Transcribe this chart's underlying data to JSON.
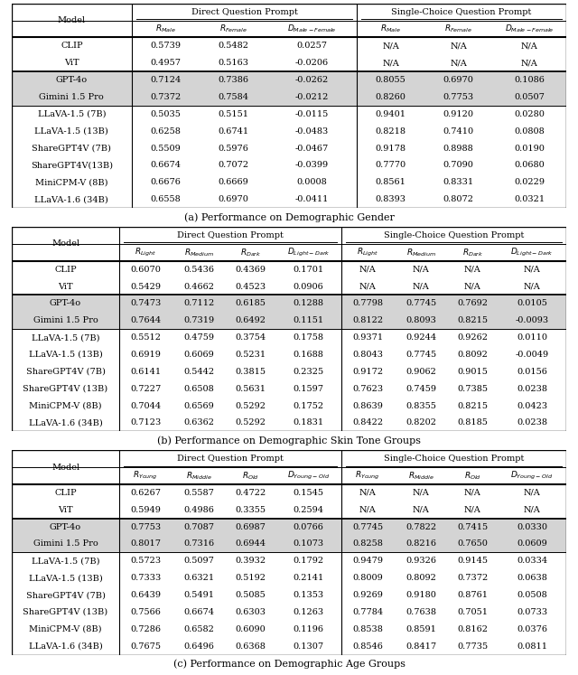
{
  "fig_width": 6.4,
  "fig_height": 7.47,
  "dpi": 100,
  "background_color": "#ffffff",
  "gray_bg": "#d4d4d4",
  "table_a": {
    "caption": "(a) Performance on Demographic Gender",
    "col_labels_row2": [
      "",
      "$R_{Male}$",
      "$R_{Female}$",
      "$D_{Male-Female}$",
      "$R_{Male}$",
      "$R_{Female}$",
      "$D_{Male-Female}$"
    ],
    "dq_span": [
      1,
      3
    ],
    "sc_span": [
      4,
      6
    ],
    "groups": [
      {
        "gray": false,
        "rows": [
          [
            "CLIP",
            "0.5739",
            "0.5482",
            "0.0257",
            "N/A",
            "N/A",
            "N/A"
          ],
          [
            "ViT",
            "0.4957",
            "0.5163",
            "-0.0206",
            "N/A",
            "N/A",
            "N/A"
          ]
        ]
      },
      {
        "gray": true,
        "rows": [
          [
            "GPT-4o",
            "0.7124",
            "0.7386",
            "-0.0262",
            "0.8055",
            "0.6970",
            "0.1086"
          ],
          [
            "Gimini 1.5 Pro",
            "0.7372",
            "0.7584",
            "-0.0212",
            "0.8260",
            "0.7753",
            "0.0507"
          ]
        ]
      },
      {
        "gray": false,
        "rows": [
          [
            "LLaVA-1.5 (7B)",
            "0.5035",
            "0.5151",
            "-0.0115",
            "0.9401",
            "0.9120",
            "0.0280"
          ],
          [
            "LLaVA-1.5 (13B)",
            "0.6258",
            "0.6741",
            "-0.0483",
            "0.8218",
            "0.7410",
            "0.0808"
          ],
          [
            "ShareGPT4V (7B)",
            "0.5509",
            "0.5976",
            "-0.0467",
            "0.9178",
            "0.8988",
            "0.0190"
          ],
          [
            "ShareGPT4V(13B)",
            "0.6674",
            "0.7072",
            "-0.0399",
            "0.7770",
            "0.7090",
            "0.0680"
          ],
          [
            "MiniCPM-V (8B)",
            "0.6676",
            "0.6669",
            "0.0008",
            "0.8561",
            "0.8331",
            "0.0229"
          ],
          [
            "LLaVA-1.6 (34B)",
            "0.6558",
            "0.6970",
            "-0.0411",
            "0.8393",
            "0.8072",
            "0.0321"
          ]
        ]
      }
    ]
  },
  "table_b": {
    "caption": "(b) Performance on Demographic Skin Tone Groups",
    "col_labels_row2": [
      "",
      "$R_{Light}$",
      "$R_{Medium}$",
      "$R_{Dark}$",
      "$D_{Light-Dark}$",
      "$R_{Light}$",
      "$R_{Medium}$",
      "$R_{Dark}$",
      "$D_{Light-Dark}$"
    ],
    "dq_span": [
      1,
      4
    ],
    "sc_span": [
      5,
      8
    ],
    "groups": [
      {
        "gray": false,
        "rows": [
          [
            "CLIP",
            "0.6070",
            "0.5436",
            "0.4369",
            "0.1701",
            "N/A",
            "N/A",
            "N/A",
            "N/A"
          ],
          [
            "ViT",
            "0.5429",
            "0.4662",
            "0.4523",
            "0.0906",
            "N/A",
            "N/A",
            "N/A",
            "N/A"
          ]
        ]
      },
      {
        "gray": true,
        "rows": [
          [
            "GPT-4o",
            "0.7473",
            "0.7112",
            "0.6185",
            "0.1288",
            "0.7798",
            "0.7745",
            "0.7692",
            "0.0105"
          ],
          [
            "Gimini 1.5 Pro",
            "0.7644",
            "0.7319",
            "0.6492",
            "0.1151",
            "0.8122",
            "0.8093",
            "0.8215",
            "-0.0093"
          ]
        ]
      },
      {
        "gray": false,
        "rows": [
          [
            "LLaVA-1.5 (7B)",
            "0.5512",
            "0.4759",
            "0.3754",
            "0.1758",
            "0.9371",
            "0.9244",
            "0.9262",
            "0.0110"
          ],
          [
            "LLaVA-1.5 (13B)",
            "0.6919",
            "0.6069",
            "0.5231",
            "0.1688",
            "0.8043",
            "0.7745",
            "0.8092",
            "-0.0049"
          ],
          [
            "ShareGPT4V (7B)",
            "0.6141",
            "0.5442",
            "0.3815",
            "0.2325",
            "0.9172",
            "0.9062",
            "0.9015",
            "0.0156"
          ],
          [
            "ShareGPT4V (13B)",
            "0.7227",
            "0.6508",
            "0.5631",
            "0.1597",
            "0.7623",
            "0.7459",
            "0.7385",
            "0.0238"
          ],
          [
            "MiniCPM-V (8B)",
            "0.7044",
            "0.6569",
            "0.5292",
            "0.1752",
            "0.8639",
            "0.8355",
            "0.8215",
            "0.0423"
          ],
          [
            "LLaVA-1.6 (34B)",
            "0.7123",
            "0.6362",
            "0.5292",
            "0.1831",
            "0.8422",
            "0.8202",
            "0.8185",
            "0.0238"
          ]
        ]
      }
    ]
  },
  "table_c": {
    "caption": "(c) Performance on Demographic Age Groups",
    "col_labels_row2": [
      "",
      "$R_{Young}$",
      "$R_{Middle}$",
      "$R_{Old}$",
      "$D_{Young-Old}$",
      "$R_{Young}$",
      "$R_{Middle}$",
      "$R_{Old}$",
      "$D_{Young-Old}$"
    ],
    "dq_span": [
      1,
      4
    ],
    "sc_span": [
      5,
      8
    ],
    "groups": [
      {
        "gray": false,
        "rows": [
          [
            "CLIP",
            "0.6267",
            "0.5587",
            "0.4722",
            "0.1545",
            "N/A",
            "N/A",
            "N/A",
            "N/A"
          ],
          [
            "ViT",
            "0.5949",
            "0.4986",
            "0.3355",
            "0.2594",
            "N/A",
            "N/A",
            "N/A",
            "N/A"
          ]
        ]
      },
      {
        "gray": true,
        "rows": [
          [
            "GPT-4o",
            "0.7753",
            "0.7087",
            "0.6987",
            "0.0766",
            "0.7745",
            "0.7822",
            "0.7415",
            "0.0330"
          ],
          [
            "Gimini 1.5 Pro",
            "0.8017",
            "0.7316",
            "0.6944",
            "0.1073",
            "0.8258",
            "0.8216",
            "0.7650",
            "0.0609"
          ]
        ]
      },
      {
        "gray": false,
        "rows": [
          [
            "LLaVA-1.5 (7B)",
            "0.5723",
            "0.5097",
            "0.3932",
            "0.1792",
            "0.9479",
            "0.9326",
            "0.9145",
            "0.0334"
          ],
          [
            "LLaVA-1.5 (13B)",
            "0.7333",
            "0.6321",
            "0.5192",
            "0.2141",
            "0.8009",
            "0.8092",
            "0.7372",
            "0.0638"
          ],
          [
            "ShareGPT4V (7B)",
            "0.6439",
            "0.5491",
            "0.5085",
            "0.1353",
            "0.9269",
            "0.9180",
            "0.8761",
            "0.0508"
          ],
          [
            "ShareGPT4V (13B)",
            "0.7566",
            "0.6674",
            "0.6303",
            "0.1263",
            "0.7784",
            "0.7638",
            "0.7051",
            "0.0733"
          ],
          [
            "MiniCPM-V (8B)",
            "0.7286",
            "0.6582",
            "0.6090",
            "0.1196",
            "0.8538",
            "0.8591",
            "0.8162",
            "0.0376"
          ],
          [
            "LLaVA-1.6 (34B)",
            "0.7675",
            "0.6496",
            "0.6368",
            "0.1307",
            "0.8546",
            "0.8417",
            "0.7735",
            "0.0811"
          ]
        ]
      }
    ]
  }
}
